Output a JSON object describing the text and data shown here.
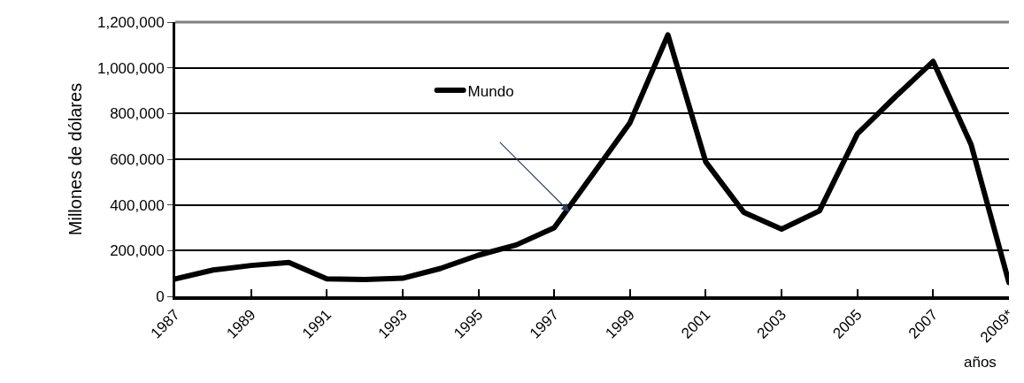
{
  "chart_data": {
    "type": "line",
    "xlabel": "años",
    "ylabel": "Millones de dólares",
    "categories": [
      "1987",
      null,
      "1989",
      null,
      "1991",
      null,
      "1993",
      null,
      "1995",
      null,
      "1997",
      null,
      "1999",
      null,
      "2001",
      null,
      "2003",
      null,
      "2005",
      null,
      "2007",
      null,
      "2009*"
    ],
    "series": [
      {
        "name": "Mundo",
        "color": "#000000",
        "values": [
          76000,
          115000,
          135000,
          148000,
          76000,
          74000,
          79000,
          122000,
          180000,
          225000,
          300000,
          529000,
          760000,
          1144000,
          588000,
          368000,
          294000,
          374000,
          711000,
          873000,
          1028000,
          665000,
          60000
        ]
      }
    ],
    "ylim": [
      0,
      1200000
    ],
    "yticks": [
      {
        "value": 0,
        "label": "0"
      },
      {
        "value": 200000,
        "label": "200,000"
      },
      {
        "value": 400000,
        "label": "400,000"
      },
      {
        "value": 600000,
        "label": "600,000"
      },
      {
        "value": 800000,
        "label": "800,000"
      },
      {
        "value": 1000000,
        "label": "1,000,000"
      },
      {
        "value": 1200000,
        "label": "1,200,000"
      }
    ],
    "grid": "y",
    "legend": "top center",
    "marker": "none",
    "line_style": "solid"
  }
}
